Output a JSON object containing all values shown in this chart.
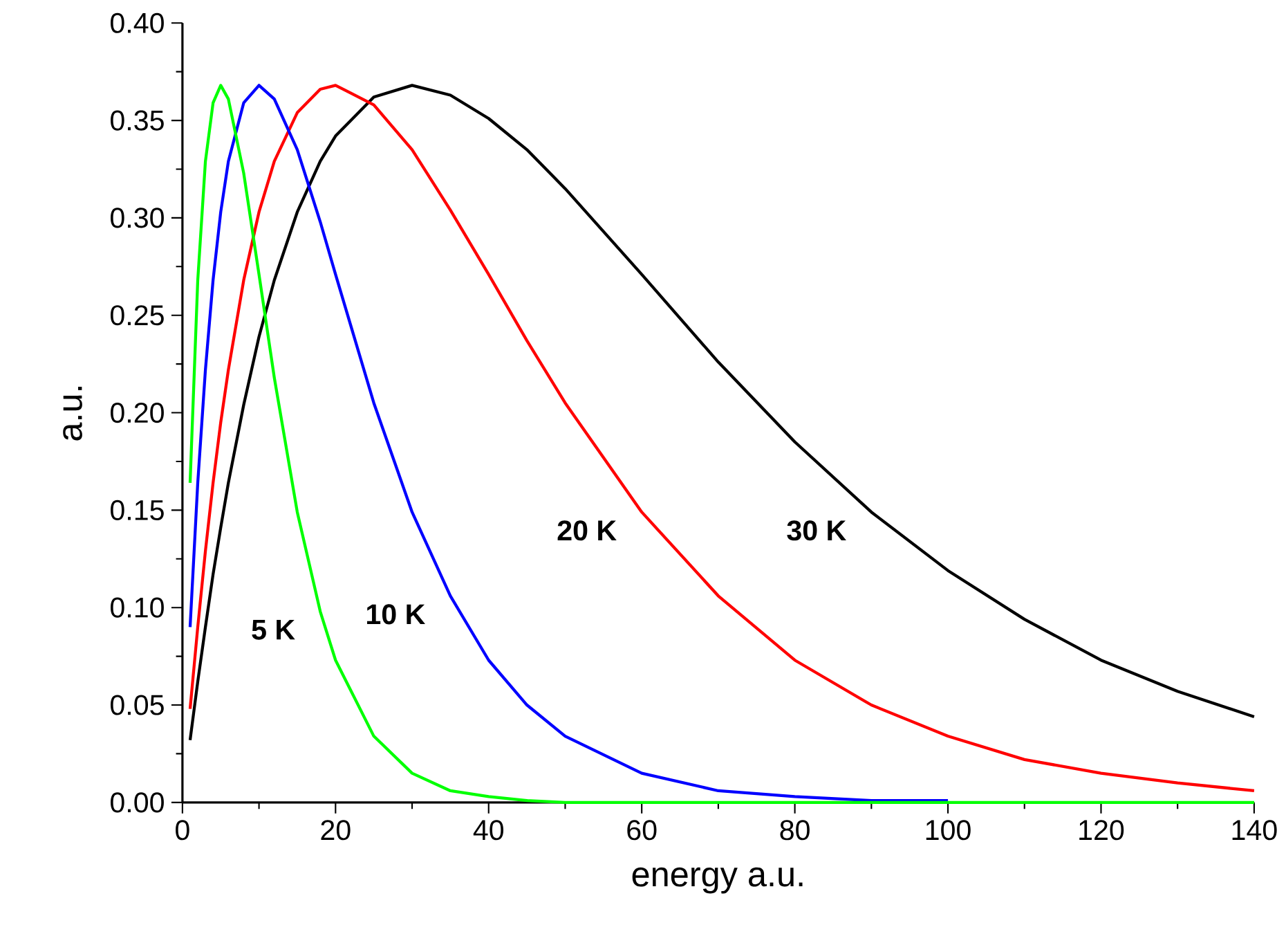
{
  "chart_data": {
    "type": "line",
    "xlabel": "energy a.u.",
    "ylabel": "a.u.",
    "x": [
      1,
      2,
      3,
      4,
      5,
      6,
      8,
      10,
      12,
      15,
      18,
      20,
      25,
      30,
      35,
      40,
      45,
      50,
      60,
      70,
      80,
      90,
      100,
      110,
      120,
      130,
      140
    ],
    "series": [
      {
        "name": "5 K",
        "color": "#00ff00",
        "values": [
          0.164,
          0.268,
          0.329,
          0.359,
          0.368,
          0.361,
          0.323,
          0.271,
          0.218,
          0.149,
          0.098,
          0.073,
          0.034,
          0.015,
          0.006,
          0.003,
          0.001,
          0,
          0,
          0,
          0,
          0,
          0,
          0,
          0,
          0,
          0
        ]
      },
      {
        "name": "10 K",
        "color": "#0000ff",
        "values": [
          0.09,
          0.164,
          0.222,
          0.268,
          0.303,
          0.329,
          0.359,
          0.368,
          0.361,
          0.335,
          0.298,
          0.271,
          0.205,
          0.149,
          0.106,
          0.073,
          0.05,
          0.034,
          0.015,
          0.006,
          0.003,
          0.001,
          0.001,
          null,
          null,
          null,
          null
        ]
      },
      {
        "name": "20 K",
        "color": "#ff0000",
        "values": [
          0.048,
          0.09,
          0.129,
          0.164,
          0.195,
          0.222,
          0.268,
          0.303,
          0.329,
          0.354,
          0.366,
          0.368,
          0.358,
          0.335,
          0.304,
          0.271,
          0.237,
          0.205,
          0.149,
          0.106,
          0.073,
          0.05,
          0.034,
          0.022,
          0.015,
          0.01,
          0.006
        ]
      },
      {
        "name": "30 K",
        "color": "#000000",
        "values": [
          0.032,
          0.062,
          0.09,
          0.117,
          0.141,
          0.164,
          0.204,
          0.239,
          0.268,
          0.303,
          0.329,
          0.342,
          0.362,
          0.368,
          0.363,
          0.351,
          0.335,
          0.315,
          0.271,
          0.226,
          0.185,
          0.149,
          0.119,
          0.094,
          0.073,
          0.057,
          0.044
        ]
      }
    ],
    "xlim": [
      0,
      140
    ],
    "ylim": [
      0,
      0.4
    ],
    "xticks": [
      0,
      20,
      40,
      60,
      80,
      100,
      120,
      140
    ],
    "yticks": [
      {
        "value": 0,
        "label": "0.00"
      },
      {
        "value": 0.05,
        "label": "0.05"
      },
      {
        "value": 0.1,
        "label": "0.10"
      },
      {
        "value": 0.15,
        "label": "0.15"
      },
      {
        "value": 0.2,
        "label": "0.20"
      },
      {
        "value": 0.25,
        "label": "0.25"
      },
      {
        "value": 0.3,
        "label": "0.30"
      },
      {
        "value": 0.35,
        "label": "0.35"
      },
      {
        "value": 0.4,
        "label": "0.40"
      }
    ],
    "grid": false,
    "legend": false,
    "marker": "none",
    "line_style": "solid"
  }
}
